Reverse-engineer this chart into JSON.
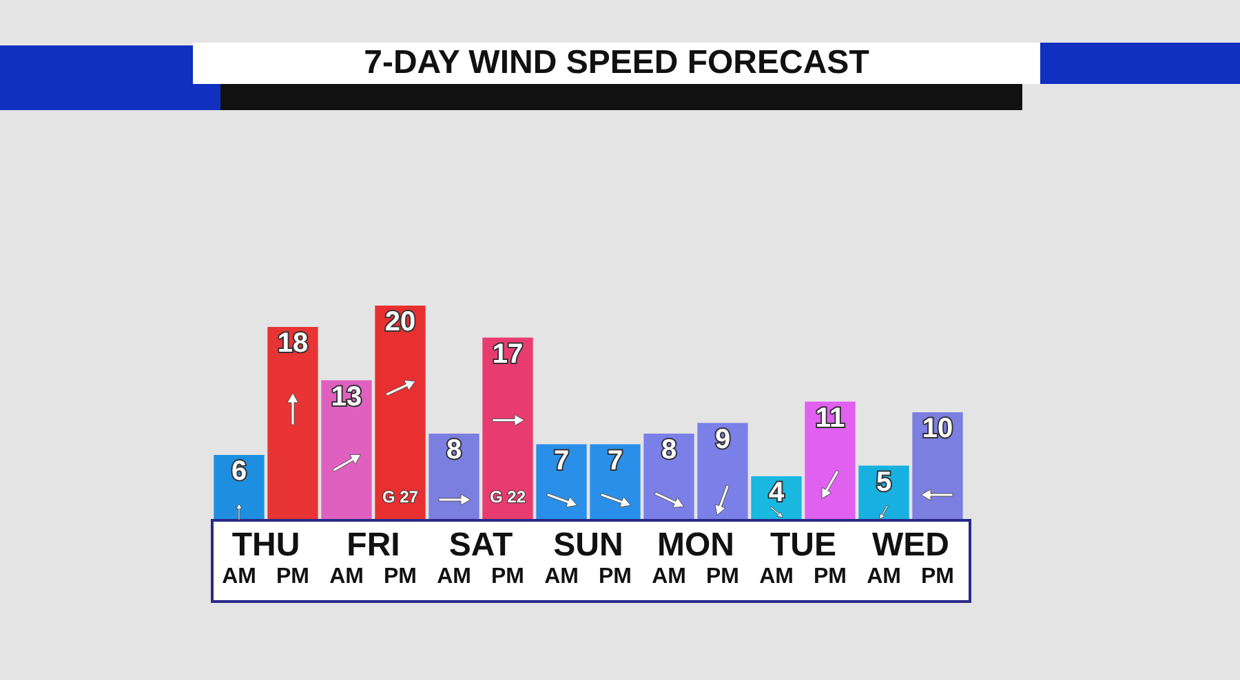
{
  "chart_data": {
    "type": "bar",
    "title": "7-DAY WIND SPEED FORECAST",
    "categories": [
      "AM",
      "PM",
      "AM",
      "PM",
      "AM",
      "PM",
      "AM",
      "PM",
      "AM",
      "PM",
      "AM",
      "PM",
      "AM",
      "PM"
    ],
    "values": [
      6,
      18,
      13,
      20,
      8,
      17,
      7,
      7,
      8,
      9,
      4,
      11,
      5,
      10
    ],
    "colors": [
      "#1e8fe0",
      "#e83434",
      "#e060c0",
      "#e83030",
      "#7b7fe0",
      "#e83c70",
      "#2a8fe8",
      "#2a8fe8",
      "#7b7fe8",
      "#7b7fe8",
      "#18b8e0",
      "#e060f0",
      "#18b0e0",
      "#7b7fe0"
    ],
    "data_labels": true,
    "annotations": [
      "THU",
      "FRI",
      "SAT",
      "SUN",
      "MON",
      "TUE",
      "WED",
      "G 27",
      "G 22"
    ]
  }
}
